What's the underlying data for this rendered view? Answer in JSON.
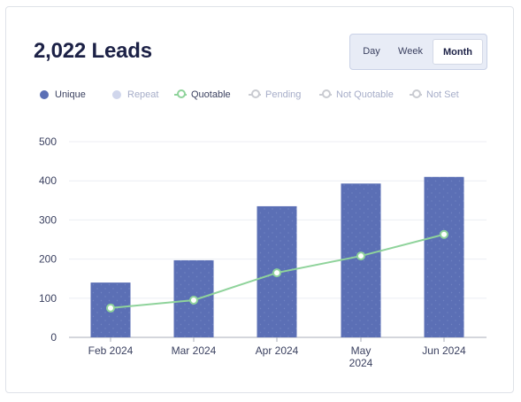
{
  "header": {
    "title": "2,022 Leads"
  },
  "range": {
    "day_label": "Day",
    "week_label": "Week",
    "month_label": "Month",
    "selected": "Month"
  },
  "legend": [
    {
      "label": "Unique",
      "marker": "dot",
      "color": "#5b6fb5",
      "text_color": "#3b4160"
    },
    {
      "label": "Repeat",
      "marker": "dot",
      "color": "#d0d6ec",
      "text_color": "#a6adc8"
    },
    {
      "label": "Quotable",
      "marker": "line-ring",
      "color": "#8fd39b",
      "text_color": "#3b4160"
    },
    {
      "label": "Pending",
      "marker": "line-ring",
      "color": "#c9cbd1",
      "text_color": "#a6adc8"
    },
    {
      "label": "Not Quotable",
      "marker": "line-ring",
      "color": "#c9cbd1",
      "text_color": "#a6adc8"
    },
    {
      "label": "Not Set",
      "marker": "line-ring",
      "color": "#c9cbd1",
      "text_color": "#a6adc8"
    }
  ],
  "chart_data": {
    "type": "bar",
    "categories": [
      "Feb 2024",
      "Mar 2024",
      "Apr 2024",
      "May 2024",
      "Jun 2024"
    ],
    "category_lines": [
      [
        "Feb 2024"
      ],
      [
        "Mar 2024"
      ],
      [
        "Apr 2024"
      ],
      [
        "May",
        "2024"
      ],
      [
        "Jun 2024"
      ]
    ],
    "series": [
      {
        "name": "Unique",
        "kind": "bar",
        "color": "#5b6fb5",
        "values": [
          140,
          197,
          335,
          393,
          410
        ]
      },
      {
        "name": "Quotable",
        "kind": "line",
        "color": "#8fd39b",
        "values": [
          75,
          95,
          165,
          208,
          263
        ]
      }
    ],
    "yticks": [
      0,
      100,
      200,
      300,
      400,
      500
    ],
    "ylim": [
      0,
      500
    ],
    "grid": true
  }
}
